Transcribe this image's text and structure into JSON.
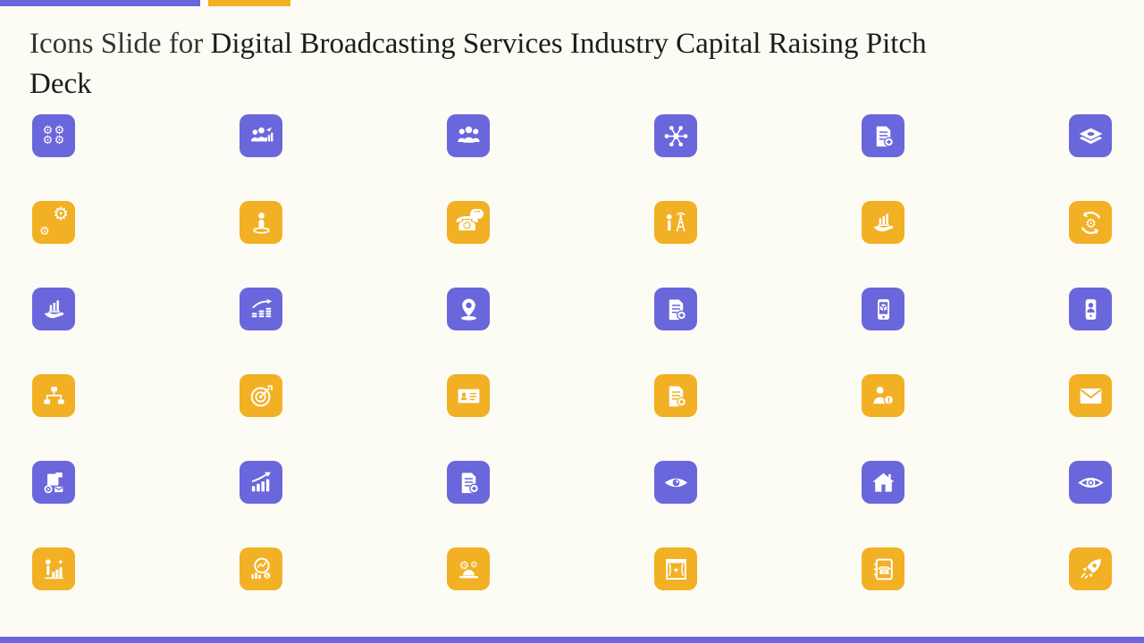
{
  "slide": {
    "title_prefix": "Icons Slide for ",
    "title_main": "Digital Broadcasting Services Industry Capital Raising Pitch Deck"
  },
  "colors": {
    "purple": "#6A66DB",
    "yellow": "#F2B024",
    "background": "#FCFCF4",
    "title_text": "#1C1C1C"
  },
  "grid": {
    "rows": [
      {
        "color": "purple",
        "icons": [
          "gears-cluster",
          "team-growth-chart",
          "team-group",
          "people-network",
          "document-add",
          "money-stack"
        ]
      },
      {
        "color": "yellow",
        "icons": [
          "gears-pair",
          "person-location",
          "phone-chat",
          "broadcast-engineer",
          "hand-chart",
          "process-cycle-gear"
        ]
      },
      {
        "color": "purple",
        "icons": [
          "hand-chart",
          "coins-growth-arrow",
          "location-pin",
          "document-add",
          "mobile-package",
          "mobile-contact"
        ]
      },
      {
        "color": "yellow",
        "icons": [
          "org-hierarchy",
          "target-dart",
          "id-card",
          "document-add",
          "person-alert",
          "envelope"
        ]
      },
      {
        "color": "purple",
        "icons": [
          "delivery-package",
          "growth-bar-arrow",
          "document-add",
          "eye-solid",
          "home",
          "eye-outline"
        ]
      },
      {
        "color": "yellow",
        "icons": [
          "presentation-person-chart",
          "analytics-magnifier",
          "industry-gears",
          "stage-frame",
          "phone-directory",
          "rocket"
        ]
      }
    ]
  }
}
